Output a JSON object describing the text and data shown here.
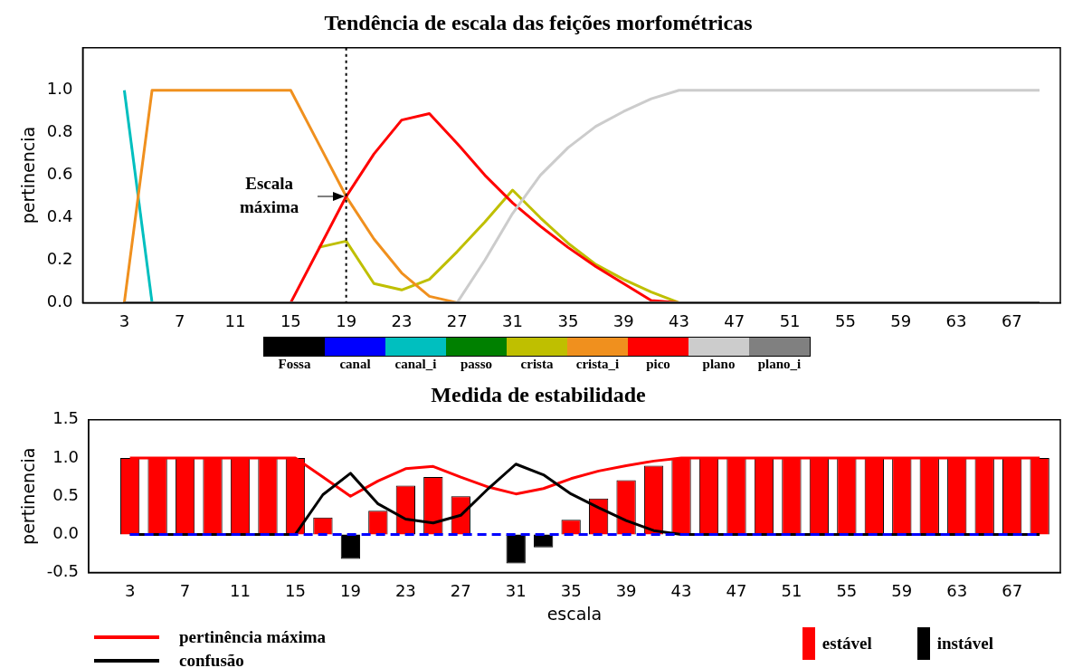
{
  "chart_data": [
    {
      "type": "line",
      "title": "Tendência de escala das feições morfométricas",
      "ylabel": "pertinencia",
      "x": [
        3,
        5,
        7,
        9,
        11,
        13,
        15,
        17,
        19,
        21,
        23,
        25,
        27,
        29,
        31,
        33,
        35,
        37,
        39,
        41,
        43,
        45,
        47,
        49,
        51,
        53,
        55,
        57,
        59,
        61,
        63,
        65,
        67,
        69
      ],
      "xlim": [
        0,
        70.5
      ],
      "xticks": [
        3,
        7,
        11,
        15,
        19,
        23,
        27,
        31,
        35,
        39,
        43,
        47,
        51,
        55,
        59,
        63,
        67
      ],
      "ylim": [
        0,
        1.2
      ],
      "yticks": [
        {
          "value": 0,
          "label": "0.0"
        },
        {
          "value": 0.2,
          "label": "0.2"
        },
        {
          "value": 0.4,
          "label": "0.4"
        },
        {
          "value": 0.6,
          "label": "0.6"
        },
        {
          "value": 0.8,
          "label": "0.8"
        },
        {
          "value": 1,
          "label": "1.0"
        }
      ],
      "grid": false,
      "legend": "bottom",
      "marker": "none",
      "line_style": "solid",
      "series": [
        {
          "name": "Fossa",
          "color": "#000000",
          "values": [
            null,
            null,
            null,
            null,
            null,
            null,
            null,
            null,
            null,
            null,
            null,
            null,
            null,
            null,
            null,
            null,
            null,
            null,
            null,
            null,
            null,
            null,
            null,
            null,
            null,
            null,
            null,
            null,
            null,
            null,
            null,
            null,
            null,
            null
          ]
        },
        {
          "name": "canal",
          "color": "#0000ff",
          "values": [
            null,
            null,
            null,
            null,
            null,
            null,
            null,
            null,
            null,
            null,
            null,
            null,
            null,
            null,
            null,
            null,
            null,
            null,
            null,
            null,
            null,
            null,
            null,
            null,
            null,
            null,
            null,
            null,
            null,
            null,
            null,
            null,
            null,
            null
          ]
        },
        {
          "name": "canal_i",
          "color": "#00bfbf",
          "values": [
            1,
            0,
            null,
            null,
            null,
            null,
            null,
            null,
            null,
            null,
            null,
            null,
            null,
            null,
            null,
            null,
            null,
            null,
            null,
            null,
            null,
            null,
            null,
            null,
            null,
            null,
            null,
            null,
            null,
            null,
            null,
            null,
            null,
            null
          ]
        },
        {
          "name": "passo",
          "color": "#008000",
          "values": [
            null,
            null,
            null,
            null,
            null,
            null,
            null,
            null,
            null,
            null,
            null,
            null,
            null,
            null,
            null,
            null,
            null,
            null,
            null,
            null,
            null,
            null,
            null,
            null,
            null,
            null,
            null,
            null,
            null,
            null,
            null,
            null,
            null,
            null
          ]
        },
        {
          "name": "crista",
          "color": "#bfbf00",
          "values": [
            null,
            null,
            null,
            null,
            null,
            null,
            null,
            0.26,
            0.29,
            0.09,
            0.06,
            0.11,
            0.24,
            0.38,
            0.53,
            0.4,
            0.28,
            0.18,
            0.11,
            0.05,
            0,
            null,
            null,
            null,
            null,
            null,
            null,
            null,
            null,
            null,
            null,
            null,
            null,
            null
          ]
        },
        {
          "name": "crista_i",
          "color": "#f0901e",
          "values": [
            0,
            1,
            1,
            1,
            1,
            1,
            1,
            0.75,
            0.5,
            0.3,
            0.14,
            0.03,
            0,
            null,
            null,
            null,
            null,
            null,
            null,
            null,
            null,
            null,
            null,
            null,
            null,
            null,
            null,
            null,
            null,
            null,
            null,
            null,
            null,
            null
          ]
        },
        {
          "name": "pico",
          "color": "#ff0000",
          "values": [
            null,
            null,
            null,
            null,
            null,
            null,
            0,
            0.25,
            0.5,
            0.7,
            0.86,
            0.89,
            0.75,
            0.6,
            0.47,
            0.36,
            0.26,
            0.17,
            0.09,
            0.01,
            0,
            null,
            null,
            null,
            null,
            null,
            null,
            null,
            null,
            null,
            null,
            null,
            null,
            null
          ]
        },
        {
          "name": "plano",
          "color": "#cccccc",
          "values": [
            null,
            null,
            null,
            null,
            null,
            null,
            null,
            null,
            null,
            null,
            null,
            null,
            0,
            0.2,
            0.42,
            0.6,
            0.73,
            0.83,
            0.9,
            0.96,
            1,
            1,
            1,
            1,
            1,
            1,
            1,
            1,
            1,
            1,
            1,
            1,
            1,
            1
          ]
        },
        {
          "name": "plano_i",
          "color": "#808080",
          "values": [
            0,
            0,
            0,
            0,
            0,
            0,
            0,
            0,
            0,
            0,
            0,
            0,
            0,
            0,
            0,
            0,
            0,
            0,
            0,
            0,
            0,
            0,
            0,
            0,
            0,
            0,
            0,
            0,
            0,
            0,
            0,
            0,
            0,
            0
          ]
        }
      ],
      "ref_lines": [
        {
          "axis": "x",
          "value": 19,
          "color": "#000000",
          "line_style": "dotted"
        }
      ],
      "annotations": [
        {
          "text": "Escala máxima",
          "x": 19,
          "y": 0.5
        }
      ]
    },
    {
      "type": "bar",
      "title": "Medida de estabilidade",
      "xlabel": "escala",
      "ylabel": "pertinencia",
      "x": [
        3,
        5,
        7,
        9,
        11,
        13,
        15,
        17,
        19,
        21,
        23,
        25,
        27,
        29,
        31,
        33,
        35,
        37,
        39,
        41,
        43,
        45,
        47,
        49,
        51,
        53,
        55,
        57,
        59,
        61,
        63,
        65,
        67,
        69
      ],
      "xlim": [
        0,
        70.5
      ],
      "xticks": [
        3,
        7,
        11,
        15,
        19,
        23,
        27,
        31,
        35,
        39,
        43,
        47,
        51,
        55,
        59,
        63,
        67
      ],
      "ylim": [
        -0.5,
        1.5
      ],
      "yticks": [
        {
          "value": -0.5,
          "label": "-0.5"
        },
        {
          "value": 0,
          "label": "0.0"
        },
        {
          "value": 0.5,
          "label": "0.5"
        },
        {
          "value": 1,
          "label": "1.0"
        },
        {
          "value": 1.5,
          "label": "1.5"
        }
      ],
      "grid": false,
      "legend": "bottom",
      "marker": "none",
      "line_style": "solid",
      "series": [
        {
          "name": "estável",
          "type": "bar",
          "color": "#ff0000",
          "values": [
            1,
            1,
            1,
            1,
            1,
            1,
            1,
            0.22,
            null,
            0.31,
            0.64,
            0.75,
            0.5,
            null,
            null,
            null,
            0.19,
            0.47,
            0.71,
            0.9,
            1,
            1,
            1,
            1,
            1,
            1,
            1,
            1,
            1,
            1,
            1,
            1,
            1,
            1
          ]
        },
        {
          "name": "instável",
          "type": "bar",
          "color": "#000000",
          "values": [
            null,
            null,
            null,
            null,
            null,
            null,
            null,
            null,
            -0.32,
            null,
            null,
            null,
            null,
            null,
            -0.38,
            -0.17,
            null,
            null,
            null,
            null,
            null,
            null,
            null,
            null,
            null,
            null,
            null,
            null,
            null,
            null,
            null,
            null,
            null,
            null
          ]
        },
        {
          "name": "pertinência máxima",
          "type": "line",
          "color": "#ff0000",
          "values": [
            1,
            1,
            1,
            1,
            1,
            1,
            1,
            0.75,
            0.5,
            0.7,
            0.86,
            0.89,
            0.75,
            0.62,
            0.53,
            0.6,
            0.73,
            0.83,
            0.9,
            0.96,
            1,
            1,
            1,
            1,
            1,
            1,
            1,
            1,
            1,
            1,
            1,
            1,
            1,
            1
          ]
        },
        {
          "name": "confusão",
          "type": "line",
          "color": "#000000",
          "values": [
            0,
            0,
            0,
            0,
            0,
            0,
            0,
            0.52,
            0.8,
            0.4,
            0.2,
            0.15,
            0.25,
            0.6,
            0.92,
            0.78,
            0.53,
            0.35,
            0.18,
            0.05,
            0,
            0,
            0,
            0,
            0,
            0,
            0,
            0,
            0,
            0,
            0,
            0,
            0,
            0
          ]
        }
      ],
      "ref_lines": [
        {
          "axis": "y",
          "value": 0,
          "color": "#0000ff",
          "line_style": "dashed"
        }
      ]
    }
  ]
}
